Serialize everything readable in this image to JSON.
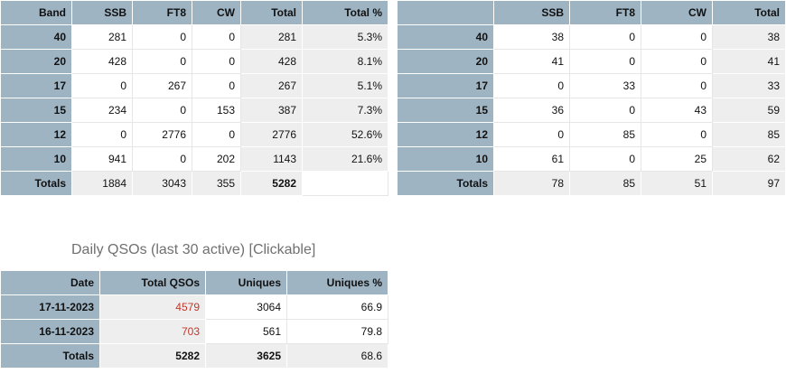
{
  "band_table": {
    "headers": [
      "Band",
      "SSB",
      "FT8",
      "CW",
      "Total",
      "Total %"
    ],
    "rows": [
      {
        "band": "40",
        "ssb": "281",
        "ft8": "0",
        "cw": "0",
        "total": "281",
        "pct": "5.3%"
      },
      {
        "band": "20",
        "ssb": "428",
        "ft8": "0",
        "cw": "0",
        "total": "428",
        "pct": "8.1%"
      },
      {
        "band": "17",
        "ssb": "0",
        "ft8": "267",
        "cw": "0",
        "total": "267",
        "pct": "5.1%"
      },
      {
        "band": "15",
        "ssb": "234",
        "ft8": "0",
        "cw": "153",
        "total": "387",
        "pct": "7.3%"
      },
      {
        "band": "12",
        "ssb": "0",
        "ft8": "2776",
        "cw": "0",
        "total": "2776",
        "pct": "52.6%"
      },
      {
        "band": "10",
        "ssb": "941",
        "ft8": "0",
        "cw": "202",
        "total": "1143",
        "pct": "21.6%"
      }
    ],
    "totals": {
      "label": "Totals",
      "ssb": "1884",
      "ft8": "3043",
      "cw": "355",
      "total": "5282"
    }
  },
  "unique_table": {
    "headers": [
      "",
      "SSB",
      "FT8",
      "CW",
      "Total"
    ],
    "rows": [
      {
        "band": "40",
        "ssb": "38",
        "ft8": "0",
        "cw": "0",
        "total": "38"
      },
      {
        "band": "20",
        "ssb": "41",
        "ft8": "0",
        "cw": "0",
        "total": "41"
      },
      {
        "band": "17",
        "ssb": "0",
        "ft8": "33",
        "cw": "0",
        "total": "33"
      },
      {
        "band": "15",
        "ssb": "36",
        "ft8": "0",
        "cw": "43",
        "total": "59"
      },
      {
        "band": "12",
        "ssb": "0",
        "ft8": "85",
        "cw": "0",
        "total": "85"
      },
      {
        "band": "10",
        "ssb": "61",
        "ft8": "0",
        "cw": "25",
        "total": "62"
      }
    ],
    "totals": {
      "label": "Totals",
      "ssb": "78",
      "ft8": "85",
      "cw": "51",
      "total": "97"
    }
  },
  "daily": {
    "title": "Daily QSOs (last 30 active) [Clickable]",
    "headers": [
      "Date",
      "Total QSOs",
      "Uniques",
      "Uniques %"
    ],
    "rows": [
      {
        "date": "17-11-2023",
        "total": "4579",
        "uniques": "3064",
        "pct": "66.9"
      },
      {
        "date": "16-11-2023",
        "total": "703",
        "uniques": "561",
        "pct": "79.8"
      }
    ],
    "totals": {
      "label": "Totals",
      "total": "5282",
      "uniques": "3625",
      "pct": "68.6"
    }
  },
  "colors": {
    "header_bg": "#9fb4c3",
    "grey_bg": "#eeeeee",
    "link": "#c0392b"
  }
}
